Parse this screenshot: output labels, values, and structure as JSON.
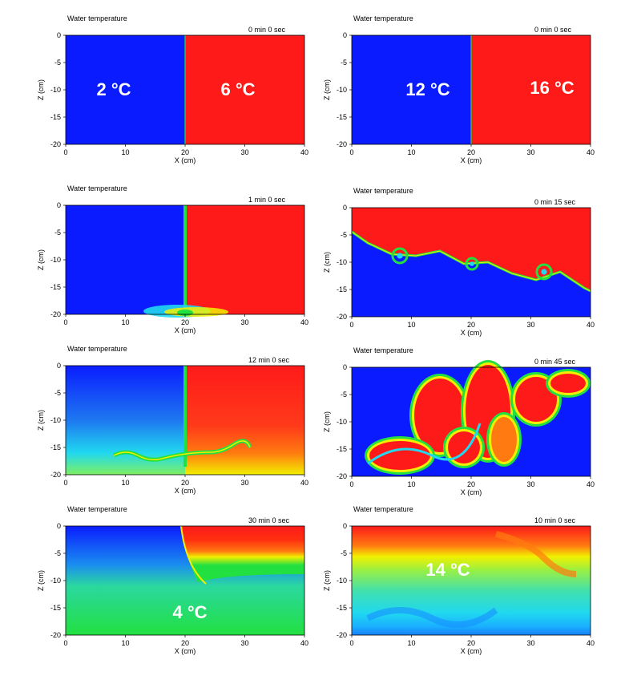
{
  "figure": {
    "panels": [
      {
        "id": "p1",
        "title": "Water temperature",
        "time": "0 min  0 sec",
        "xlabel": "X (cm)",
        "ylabel": "Z (cm)",
        "annotations": [
          {
            "id": "a1",
            "label": "2 °C"
          },
          {
            "id": "a2",
            "label": "6 °C"
          }
        ]
      },
      {
        "id": "p2",
        "title": "Water temperature",
        "time": "0 min  0 sec",
        "xlabel": "X (cm)",
        "ylabel": "Z (cm)",
        "annotations": [
          {
            "id": "a1",
            "label": "12 °C"
          },
          {
            "id": "a2",
            "label": "16 °C"
          }
        ]
      },
      {
        "id": "p3",
        "title": "Water temperature",
        "time": "1 min  0 sec",
        "xlabel": "X (cm)",
        "ylabel": "Z (cm)",
        "annotations": []
      },
      {
        "id": "p4",
        "title": "Water temperature",
        "time": "0 min  15 sec",
        "xlabel": "X (cm)",
        "ylabel": "Z (cm)",
        "annotations": []
      },
      {
        "id": "p5",
        "title": "Water temperature",
        "time": "12 min  0 sec",
        "xlabel": "X (cm)",
        "ylabel": "Z (cm)",
        "annotations": []
      },
      {
        "id": "p6",
        "title": "Water temperature",
        "time": "0 min  45 sec",
        "xlabel": "X (cm)",
        "ylabel": "Z (cm)",
        "annotations": []
      },
      {
        "id": "p7",
        "title": "Water temperature",
        "time": "30 min  0 sec",
        "xlabel": "X (cm)",
        "ylabel": "Z (cm)",
        "annotations": [
          {
            "id": "a1",
            "label": "4 °C"
          }
        ]
      },
      {
        "id": "p8",
        "title": "Water temperature",
        "time": "10 min  0 sec",
        "xlabel": "X (cm)",
        "ylabel": "Z (cm)",
        "annotations": [
          {
            "id": "a1",
            "label": "14 °C"
          }
        ]
      }
    ],
    "x_ticks": [
      "0",
      "10",
      "20",
      "30",
      "40"
    ],
    "z_ticks": [
      "0",
      "-5",
      "-10",
      "-15",
      "-20"
    ],
    "colors": {
      "cold": "#0a1cff",
      "warm": "#ff1a1a",
      "green": "#22e040",
      "cyan": "#20d8f0",
      "yellow": "#f2f000",
      "orange": "#ff7a10"
    }
  }
}
